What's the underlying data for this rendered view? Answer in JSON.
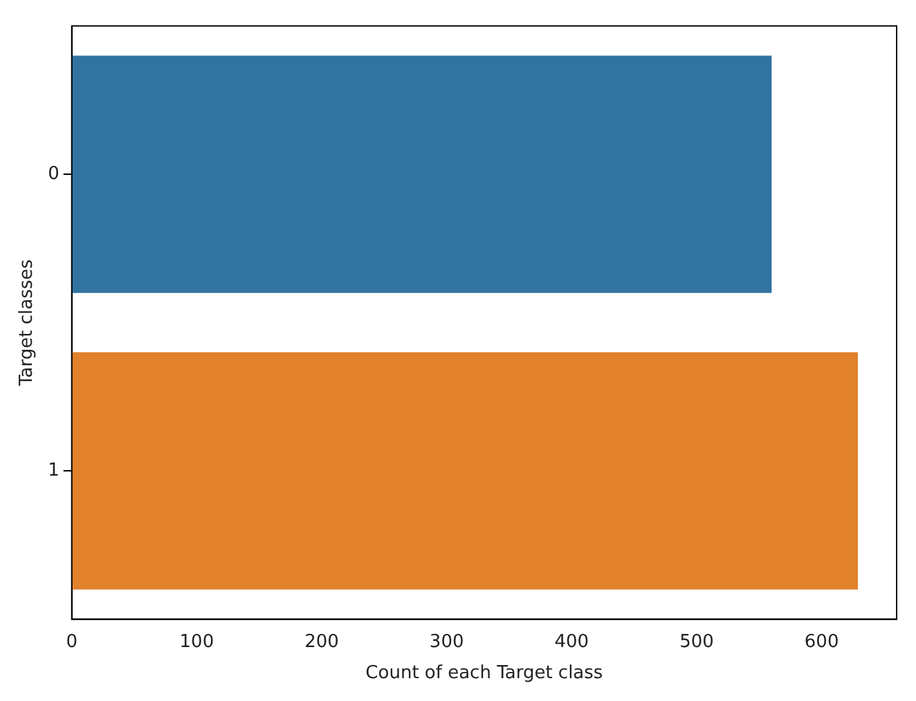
{
  "chart_data": {
    "type": "bar",
    "orientation": "horizontal",
    "xlabel": "Count of each Target class",
    "ylabel": "Target classes",
    "categories": [
      "0",
      "1"
    ],
    "values": [
      560,
      629
    ],
    "colors": [
      "#3274a1",
      "#e1812c"
    ],
    "xlim": [
      0,
      660
    ],
    "xticks": [
      0,
      100,
      200,
      300,
      400,
      500,
      600
    ],
    "grid": false,
    "legend": false
  }
}
